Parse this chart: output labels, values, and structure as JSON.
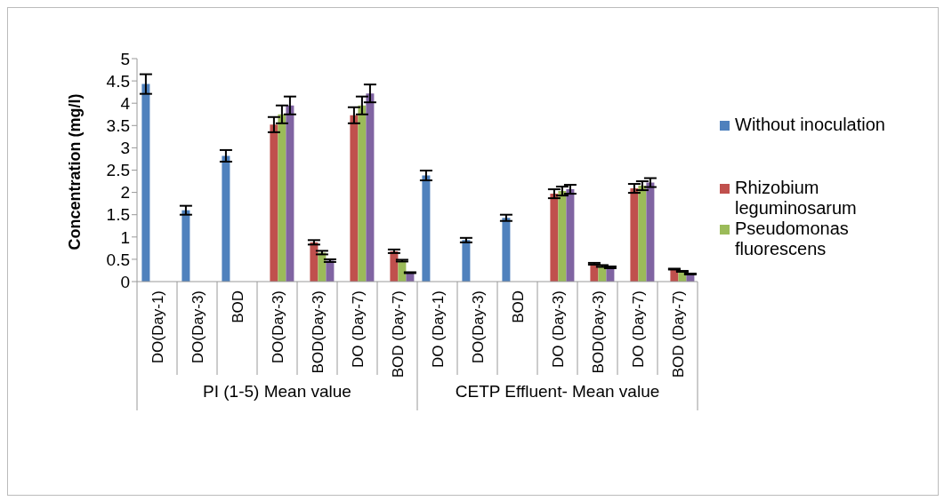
{
  "chart_data": {
    "type": "bar",
    "ylabel": "Concentration (mg/l)",
    "categories": [
      "DO(Day-1)",
      "DO(Day-3)",
      "BOD",
      "DO(Day-3)",
      "BOD(Day-3)",
      "DO (Day-7)",
      "BOD (Day-7)",
      "DO (Day-1)",
      "DO(Day-3)",
      "BOD",
      "DO (Day-3)",
      "BOD(Day-3)",
      "DO (Day-7)",
      "BOD (Day-7)"
    ],
    "series": [
      {
        "name": "Without inoculation",
        "color": "#4f81bd",
        "values": [
          4.43,
          1.6,
          2.82,
          null,
          null,
          null,
          null,
          2.38,
          0.93,
          1.43,
          null,
          null,
          null,
          null
        ],
        "errors": [
          0.22,
          0.1,
          0.13,
          null,
          null,
          null,
          null,
          0.11,
          0.05,
          0.07,
          null,
          null,
          null,
          null
        ]
      },
      {
        "name": "Rhizobium leguminosarum",
        "color": "#c0504d",
        "values": [
          null,
          null,
          null,
          3.52,
          0.88,
          3.73,
          0.68,
          null,
          null,
          null,
          1.97,
          0.4,
          2.09,
          0.28
        ],
        "errors": [
          null,
          null,
          null,
          0.17,
          0.05,
          0.18,
          0.04,
          null,
          null,
          null,
          0.1,
          0.02,
          0.1,
          0.01
        ]
      },
      {
        "name": "Pseudomonas fluorescens",
        "color": "#9bbb59",
        "values": [
          null,
          null,
          null,
          3.75,
          0.65,
          3.95,
          0.47,
          null,
          null,
          null,
          2.03,
          0.35,
          2.15,
          0.23
        ],
        "errors": [
          null,
          null,
          null,
          0.2,
          0.04,
          0.2,
          0.02,
          null,
          null,
          null,
          0.1,
          0.02,
          0.1,
          0.01
        ]
      },
      {
        "color": "#8064a2",
        "values": [
          null,
          null,
          null,
          3.95,
          0.47,
          4.22,
          0.2,
          null,
          null,
          null,
          2.07,
          0.32,
          2.22,
          0.17
        ],
        "errors": [
          null,
          null,
          null,
          0.2,
          0.03,
          0.2,
          0.01,
          null,
          null,
          null,
          0.1,
          0.02,
          0.1,
          0.01
        ]
      }
    ],
    "ylim": [
      0,
      5
    ],
    "yticks": [
      0,
      0.5,
      1,
      1.5,
      2,
      2.5,
      3,
      3.5,
      4,
      4.5,
      5
    ],
    "legend": "right",
    "annotations": [
      "PI (1-5) Mean value",
      "CETP Effluent- Mean value"
    ]
  }
}
